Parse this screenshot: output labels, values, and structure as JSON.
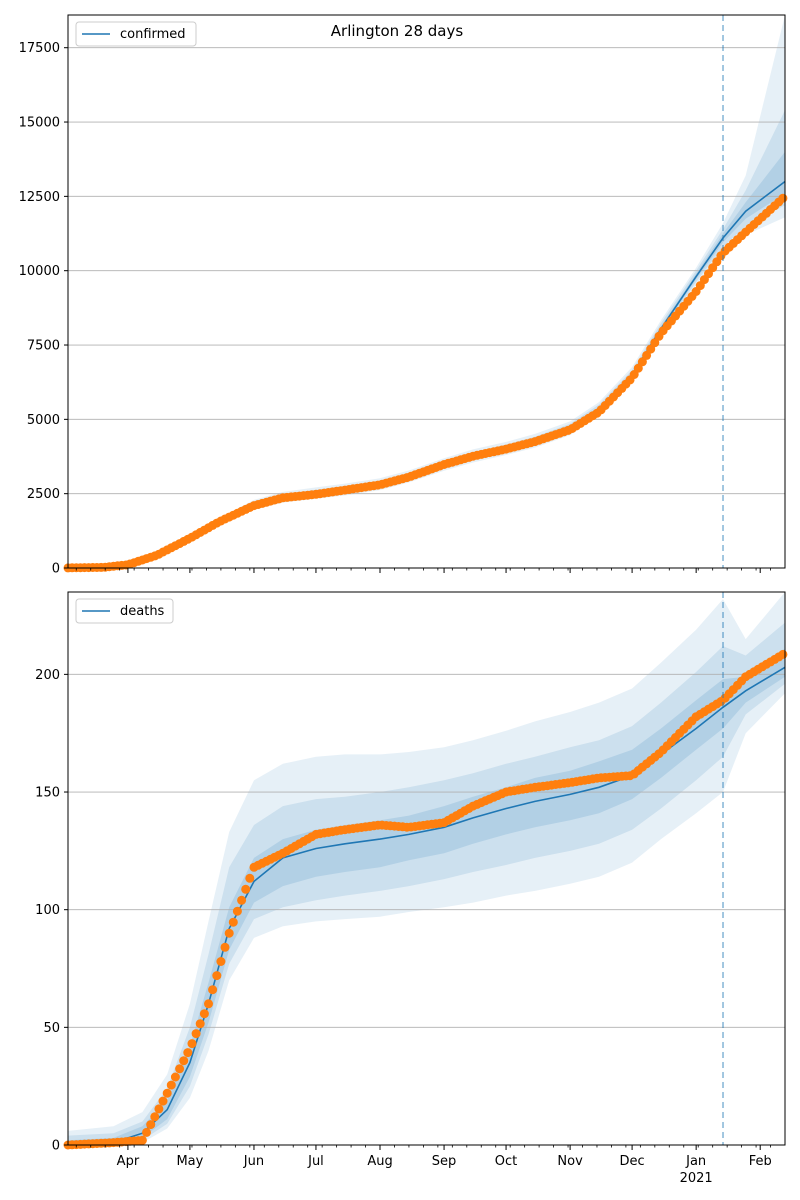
{
  "figure": {
    "title": "Arlington 28 days"
  },
  "colors": {
    "model": "#1f77b4",
    "observed": "#ff7f0e",
    "band": "#1f77b4",
    "grid": "#b0b0b0"
  },
  "x_axis": {
    "month_ticks": [
      {
        "date": "2020-04-01",
        "label": "Apr"
      },
      {
        "date": "2020-05-01",
        "label": "May"
      },
      {
        "date": "2020-06-01",
        "label": "Jun"
      },
      {
        "date": "2020-07-01",
        "label": "Jul"
      },
      {
        "date": "2020-08-01",
        "label": "Aug"
      },
      {
        "date": "2020-09-01",
        "label": "Sep"
      },
      {
        "date": "2020-10-01",
        "label": "Oct"
      },
      {
        "date": "2020-11-01",
        "label": "Nov"
      },
      {
        "date": "2020-12-01",
        "label": "Dec"
      },
      {
        "date": "2021-01-01",
        "label": "Jan"
      },
      {
        "date": "2021-02-01",
        "label": "Feb"
      }
    ],
    "year_label": "2021",
    "xlim": [
      "2020-03-03",
      "2021-02-13"
    ],
    "forecast_start": "2021-01-14"
  },
  "chart_data": [
    {
      "type": "line",
      "legend": "confirmed",
      "legend_placement": "top-left",
      "grid": "y",
      "ylim": [
        0,
        18600
      ],
      "yticks": [
        0,
        2500,
        5000,
        7500,
        10000,
        12500,
        15000,
        17500
      ],
      "x": [
        "2020-03-03",
        "2020-03-20",
        "2020-04-01",
        "2020-04-15",
        "2020-05-01",
        "2020-05-15",
        "2020-06-01",
        "2020-06-15",
        "2020-07-01",
        "2020-07-15",
        "2020-08-01",
        "2020-08-15",
        "2020-09-01",
        "2020-09-15",
        "2020-10-01",
        "2020-10-15",
        "2020-11-01",
        "2020-11-15",
        "2020-12-01",
        "2020-12-15",
        "2021-01-01",
        "2021-01-14",
        "2021-01-25",
        "2021-02-13"
      ],
      "model": [
        5,
        20,
        130,
        450,
        1000,
        1550,
        2150,
        2380,
        2520,
        2640,
        2820,
        3080,
        3480,
        3770,
        4020,
        4280,
        4700,
        5350,
        6500,
        8050,
        9800,
        11100,
        12000,
        13000
      ],
      "observed": [
        5,
        20,
        110,
        430,
        1000,
        1550,
        2100,
        2360,
        2480,
        2620,
        2800,
        3060,
        3480,
        3760,
        4000,
        4250,
        4650,
        5250,
        6400,
        7900,
        9300,
        10600,
        11300,
        12500
      ],
      "bands": [
        {
          "lower": [
            3,
            15,
            100,
            390,
            900,
            1440,
            1970,
            2200,
            2330,
            2440,
            2620,
            2880,
            3270,
            3550,
            3800,
            4050,
            4470,
            5120,
            6260,
            7800,
            9520,
            10650,
            11200,
            11800
          ],
          "upper": [
            10,
            30,
            170,
            520,
            1100,
            1660,
            2290,
            2560,
            2710,
            2840,
            3020,
            3280,
            3690,
            3990,
            4240,
            4510,
            4930,
            5580,
            6760,
            8330,
            10100,
            11600,
            13200,
            18600
          ]
        },
        {
          "lower": [
            4,
            16,
            110,
            410,
            930,
            1480,
            2030,
            2270,
            2400,
            2510,
            2690,
            2950,
            3350,
            3630,
            3880,
            4130,
            4550,
            5200,
            6340,
            7890,
            9620,
            10800,
            11500,
            12200
          ],
          "upper": [
            8,
            26,
            150,
            490,
            1060,
            1620,
            2240,
            2480,
            2630,
            2760,
            2940,
            3200,
            3610,
            3900,
            4150,
            4420,
            4850,
            5500,
            6660,
            8230,
            10000,
            11400,
            12700,
            15400
          ]
        },
        {
          "lower": [
            4,
            18,
            120,
            430,
            960,
            1510,
            2080,
            2320,
            2460,
            2570,
            2750,
            3010,
            3410,
            3700,
            3950,
            4210,
            4630,
            5280,
            6420,
            7970,
            9710,
            10950,
            11750,
            12600
          ],
          "upper": [
            6,
            22,
            140,
            470,
            1030,
            1590,
            2200,
            2430,
            2570,
            2700,
            2880,
            3140,
            3550,
            3840,
            4090,
            4350,
            4770,
            5420,
            6580,
            8130,
            9900,
            11250,
            12300,
            14000
          ]
        }
      ]
    },
    {
      "type": "line",
      "legend": "deaths",
      "legend_placement": "top-left",
      "grid": "y",
      "ylim": [
        0,
        235
      ],
      "yticks": [
        0,
        50,
        100,
        150,
        200
      ],
      "x": [
        "2020-03-03",
        "2020-03-25",
        "2020-04-08",
        "2020-04-20",
        "2020-05-01",
        "2020-05-10",
        "2020-05-20",
        "2020-06-01",
        "2020-06-15",
        "2020-07-01",
        "2020-07-15",
        "2020-08-01",
        "2020-08-15",
        "2020-09-01",
        "2020-09-15",
        "2020-10-01",
        "2020-10-15",
        "2020-11-01",
        "2020-11-15",
        "2020-12-01",
        "2020-12-15",
        "2021-01-01",
        "2021-01-14",
        "2021-01-25",
        "2021-02-13"
      ],
      "model": [
        0,
        1,
        5,
        15,
        35,
        60,
        92,
        112,
        122,
        126,
        128,
        130,
        132,
        135,
        139,
        143,
        146,
        149,
        152,
        157,
        166,
        177,
        186,
        193,
        203
      ],
      "observed": [
        0,
        1,
        2,
        22,
        41,
        60,
        90,
        118,
        124,
        132,
        134,
        136,
        135,
        137,
        144,
        150,
        152,
        154,
        156,
        157,
        167,
        182,
        189,
        199,
        209
      ],
      "bands": [
        {
          "lower": [
            0,
            0,
            1,
            7,
            20,
            40,
            70,
            88,
            93,
            95,
            96,
            97,
            99,
            101,
            103,
            106,
            108,
            111,
            114,
            120,
            130,
            141,
            150,
            175,
            192
          ],
          "upper": [
            6,
            8,
            14,
            30,
            60,
            95,
            133,
            155,
            162,
            165,
            166,
            166,
            167,
            169,
            172,
            176,
            180,
            184,
            188,
            194,
            205,
            219,
            232,
            215,
            235
          ]
        },
        {
          "lower": [
            0,
            0,
            2,
            9,
            25,
            47,
            77,
            96,
            101,
            104,
            106,
            108,
            110,
            113,
            116,
            119,
            122,
            125,
            128,
            134,
            143,
            155,
            165,
            183,
            196
          ],
          "upper": [
            4,
            5,
            10,
            24,
            50,
            81,
            118,
            136,
            144,
            147,
            148,
            150,
            152,
            155,
            158,
            162,
            165,
            169,
            172,
            178,
            188,
            201,
            212,
            208,
            222
          ]
        },
        {
          "lower": [
            0,
            1,
            3,
            11,
            29,
            52,
            83,
            103,
            110,
            114,
            116,
            118,
            121,
            124,
            128,
            132,
            135,
            138,
            141,
            147,
            156,
            168,
            177,
            188,
            199
          ],
          "upper": [
            2,
            3,
            8,
            19,
            42,
            69,
            101,
            122,
            130,
            134,
            136,
            138,
            140,
            144,
            148,
            152,
            156,
            159,
            163,
            168,
            177,
            189,
            198,
            199,
            211
          ]
        }
      ]
    }
  ]
}
